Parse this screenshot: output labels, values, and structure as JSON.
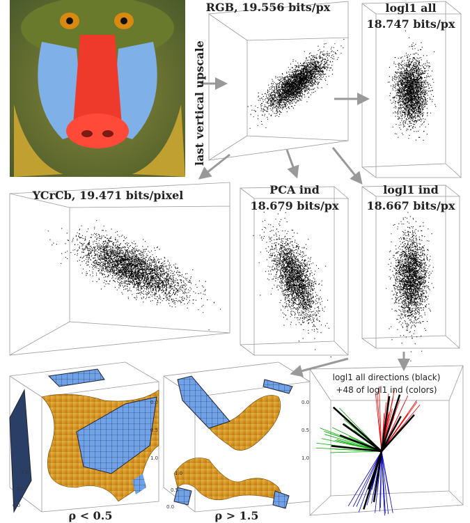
{
  "panels": {
    "rgb": {
      "title": "RGB, 19.556 bits/px",
      "side_label": "last vertical upscale"
    },
    "logl1_all": {
      "title": [
        "logl1 all",
        "18.747 bits/px"
      ]
    },
    "ycrcb": {
      "title": "YCrCb, 19.471 bits/pixel"
    },
    "pca_ind": {
      "title": [
        "PCA ind",
        "18.679 bits/px"
      ]
    },
    "logl1_ind": {
      "title": [
        "logl1 ind",
        "18.667 bits/px"
      ]
    },
    "cube_low": {
      "caption": "ρ < 0.5",
      "ticks": [
        "0.0",
        "0.5",
        "1.0"
      ]
    },
    "cube_high": {
      "caption": "ρ > 1.5",
      "ticks": [
        "0.0",
        "0.5",
        "1.0"
      ]
    },
    "directions": {
      "title": [
        "logl1 all directions (black)",
        "+48 of logl1 ind (colors)"
      ]
    }
  }
}
